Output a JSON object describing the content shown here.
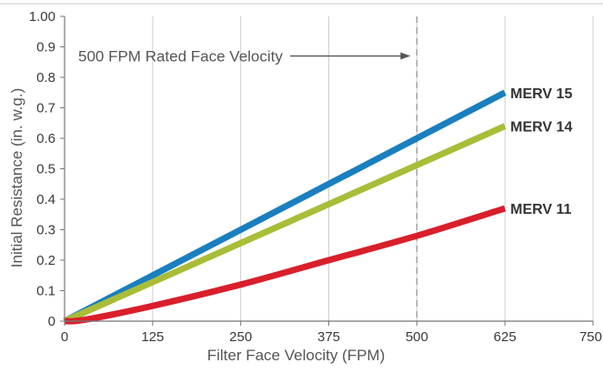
{
  "chart_data": {
    "type": "line",
    "xlabel": "Filter Face Velocity (FPM)",
    "ylabel": "Initial Resistance (in. w.g.)",
    "xlim": [
      0,
      750
    ],
    "ylim": [
      0,
      1.0
    ],
    "x_ticks": [
      0,
      125,
      250,
      375,
      500,
      625,
      750
    ],
    "x_tick_labels": [
      "0",
      "125",
      "250",
      "375",
      "500",
      "625",
      "750"
    ],
    "y_ticks": [
      0,
      0.1,
      0.2,
      0.3,
      0.4,
      0.5,
      0.6,
      0.7,
      0.8,
      0.9,
      1.0
    ],
    "y_tick_labels": [
      "0",
      "0.1",
      "0.2",
      "0.3",
      "0.4",
      "0.5",
      "0.6",
      "0.7",
      "0.8",
      "0.9",
      "1.00"
    ],
    "grid": "vertical",
    "series": [
      {
        "name": "MERV 15",
        "color": "#1a7fbf",
        "points": [
          [
            0,
            0
          ],
          [
            625,
            0.75
          ]
        ]
      },
      {
        "name": "MERV 14",
        "color": "#a9bd38",
        "points": [
          [
            0,
            0
          ],
          [
            625,
            0.64
          ]
        ]
      },
      {
        "name": "MERV 11",
        "color": "#d91f2b",
        "points": [
          [
            0,
            0
          ],
          [
            30,
            0.005
          ],
          [
            125,
            0.05
          ],
          [
            250,
            0.12
          ],
          [
            375,
            0.2
          ],
          [
            500,
            0.28
          ],
          [
            625,
            0.37
          ]
        ]
      }
    ],
    "annotation": {
      "text": "500 FPM Rated Face Velocity",
      "x": 500,
      "y": 0.87,
      "style": "dashed vertical line with arrow"
    }
  }
}
